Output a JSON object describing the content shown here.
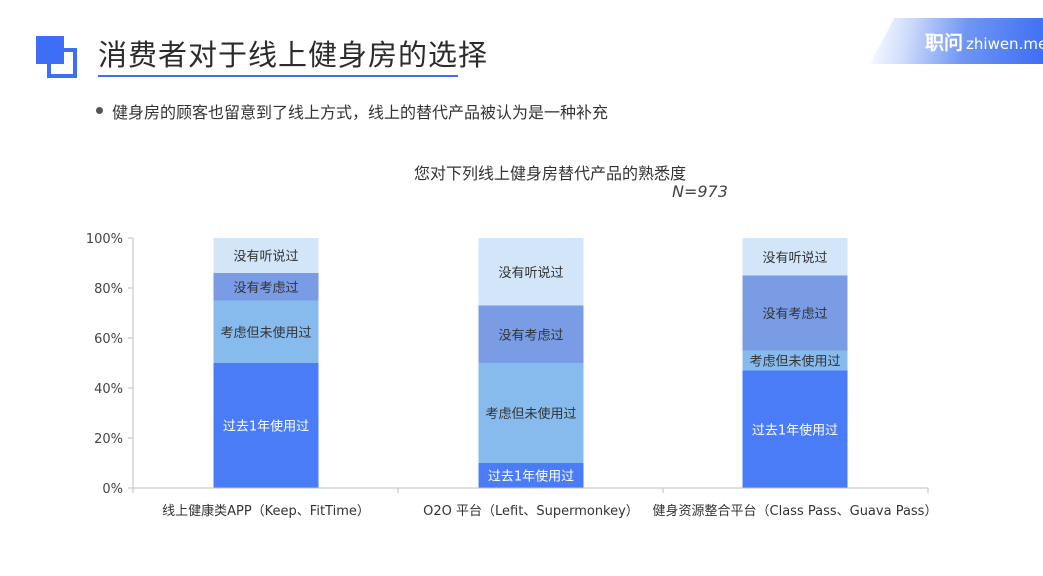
{
  "header": {
    "title": "消费者对于线上健身房的选择",
    "bullet": "健身房的顾客也留意到了线上方式，线上的替代产品被认为是一种补充",
    "brand_cn": "职问",
    "brand_en": "zhiwen.me",
    "accent": "#3d6ef5"
  },
  "chart_data": {
    "type": "bar",
    "stacked": true,
    "title": "您对下列线上健身房替代产品的熟悉度",
    "subtitle": "N=973",
    "categories": [
      "线上健康类APP（Keep、FitTime）",
      "O2O 平台（Lefit、Supermonkey）",
      "健身资源整合平台（Class Pass、Guava Pass）"
    ],
    "ylim": [
      0,
      100
    ],
    "yticks": [
      "0%",
      "20%",
      "40%",
      "60%",
      "80%",
      "100%"
    ],
    "series": [
      {
        "name": "过去1年使用过",
        "values": [
          50,
          10,
          47
        ],
        "color": "#4a7cf7",
        "text_color": "#ffffff"
      },
      {
        "name": "考虑但未使用过",
        "values": [
          25,
          40,
          8
        ],
        "color": "#88bbed",
        "text_color": "#333333"
      },
      {
        "name": "没有考虑过",
        "values": [
          11,
          23,
          30
        ],
        "color": "#7a9ce4",
        "text_color": "#333333"
      },
      {
        "name": "没有听说过",
        "values": [
          14,
          27,
          15
        ],
        "color": "#d3e5f8",
        "text_color": "#333333"
      }
    ]
  }
}
